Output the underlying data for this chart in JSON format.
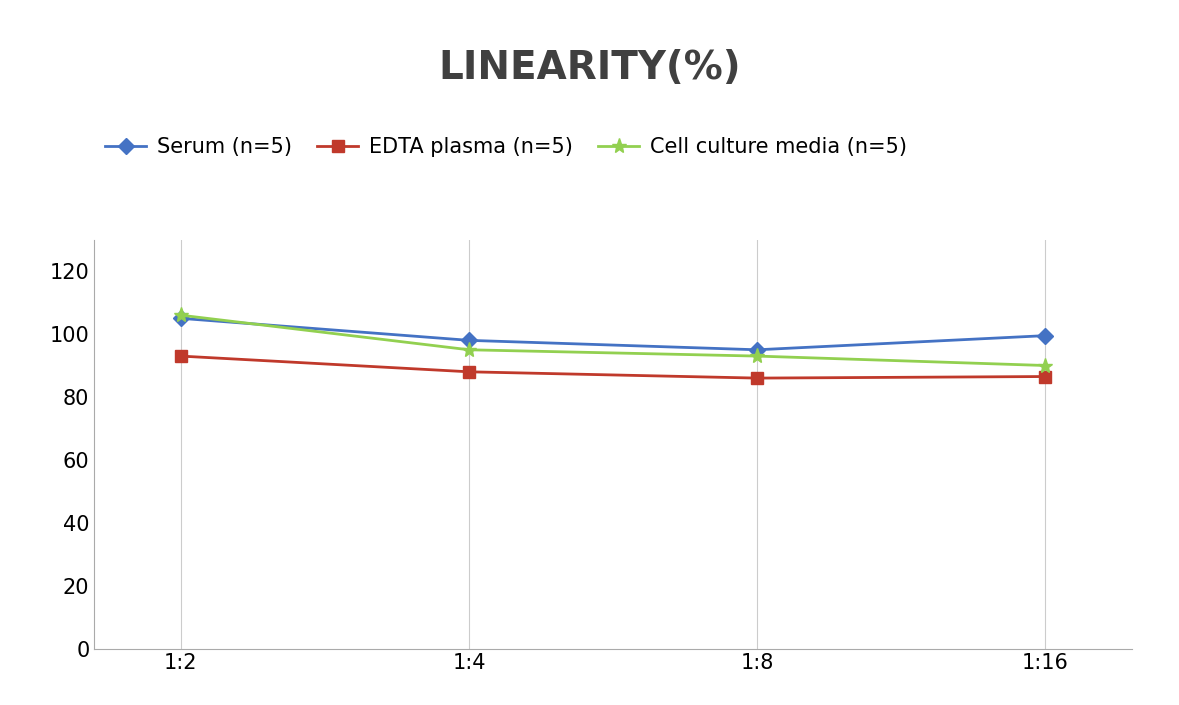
{
  "title": "LINEARITY(%)",
  "x_labels": [
    "1:2",
    "1:4",
    "1:8",
    "1:16"
  ],
  "x_positions": [
    0,
    1,
    2,
    3
  ],
  "series": [
    {
      "label": "Serum (n=5)",
      "values": [
        105,
        98,
        95,
        99.5
      ],
      "color": "#4472C4",
      "marker": "D",
      "linewidth": 2,
      "markersize": 8
    },
    {
      "label": "EDTA plasma (n=5)",
      "values": [
        93,
        88,
        86,
        86.5
      ],
      "color": "#C0392B",
      "marker": "s",
      "linewidth": 2,
      "markersize": 8
    },
    {
      "label": "Cell culture media (n=5)",
      "values": [
        106,
        95,
        93,
        90
      ],
      "color": "#92D050",
      "marker": "*",
      "linewidth": 2,
      "markersize": 11
    }
  ],
  "ylim": [
    0,
    130
  ],
  "yticks": [
    0,
    20,
    40,
    60,
    80,
    100,
    120
  ],
  "background_color": "#ffffff",
  "title_fontsize": 28,
  "tick_fontsize": 15,
  "legend_fontsize": 15,
  "grid_color": "#cccccc",
  "title_color": "#404040"
}
